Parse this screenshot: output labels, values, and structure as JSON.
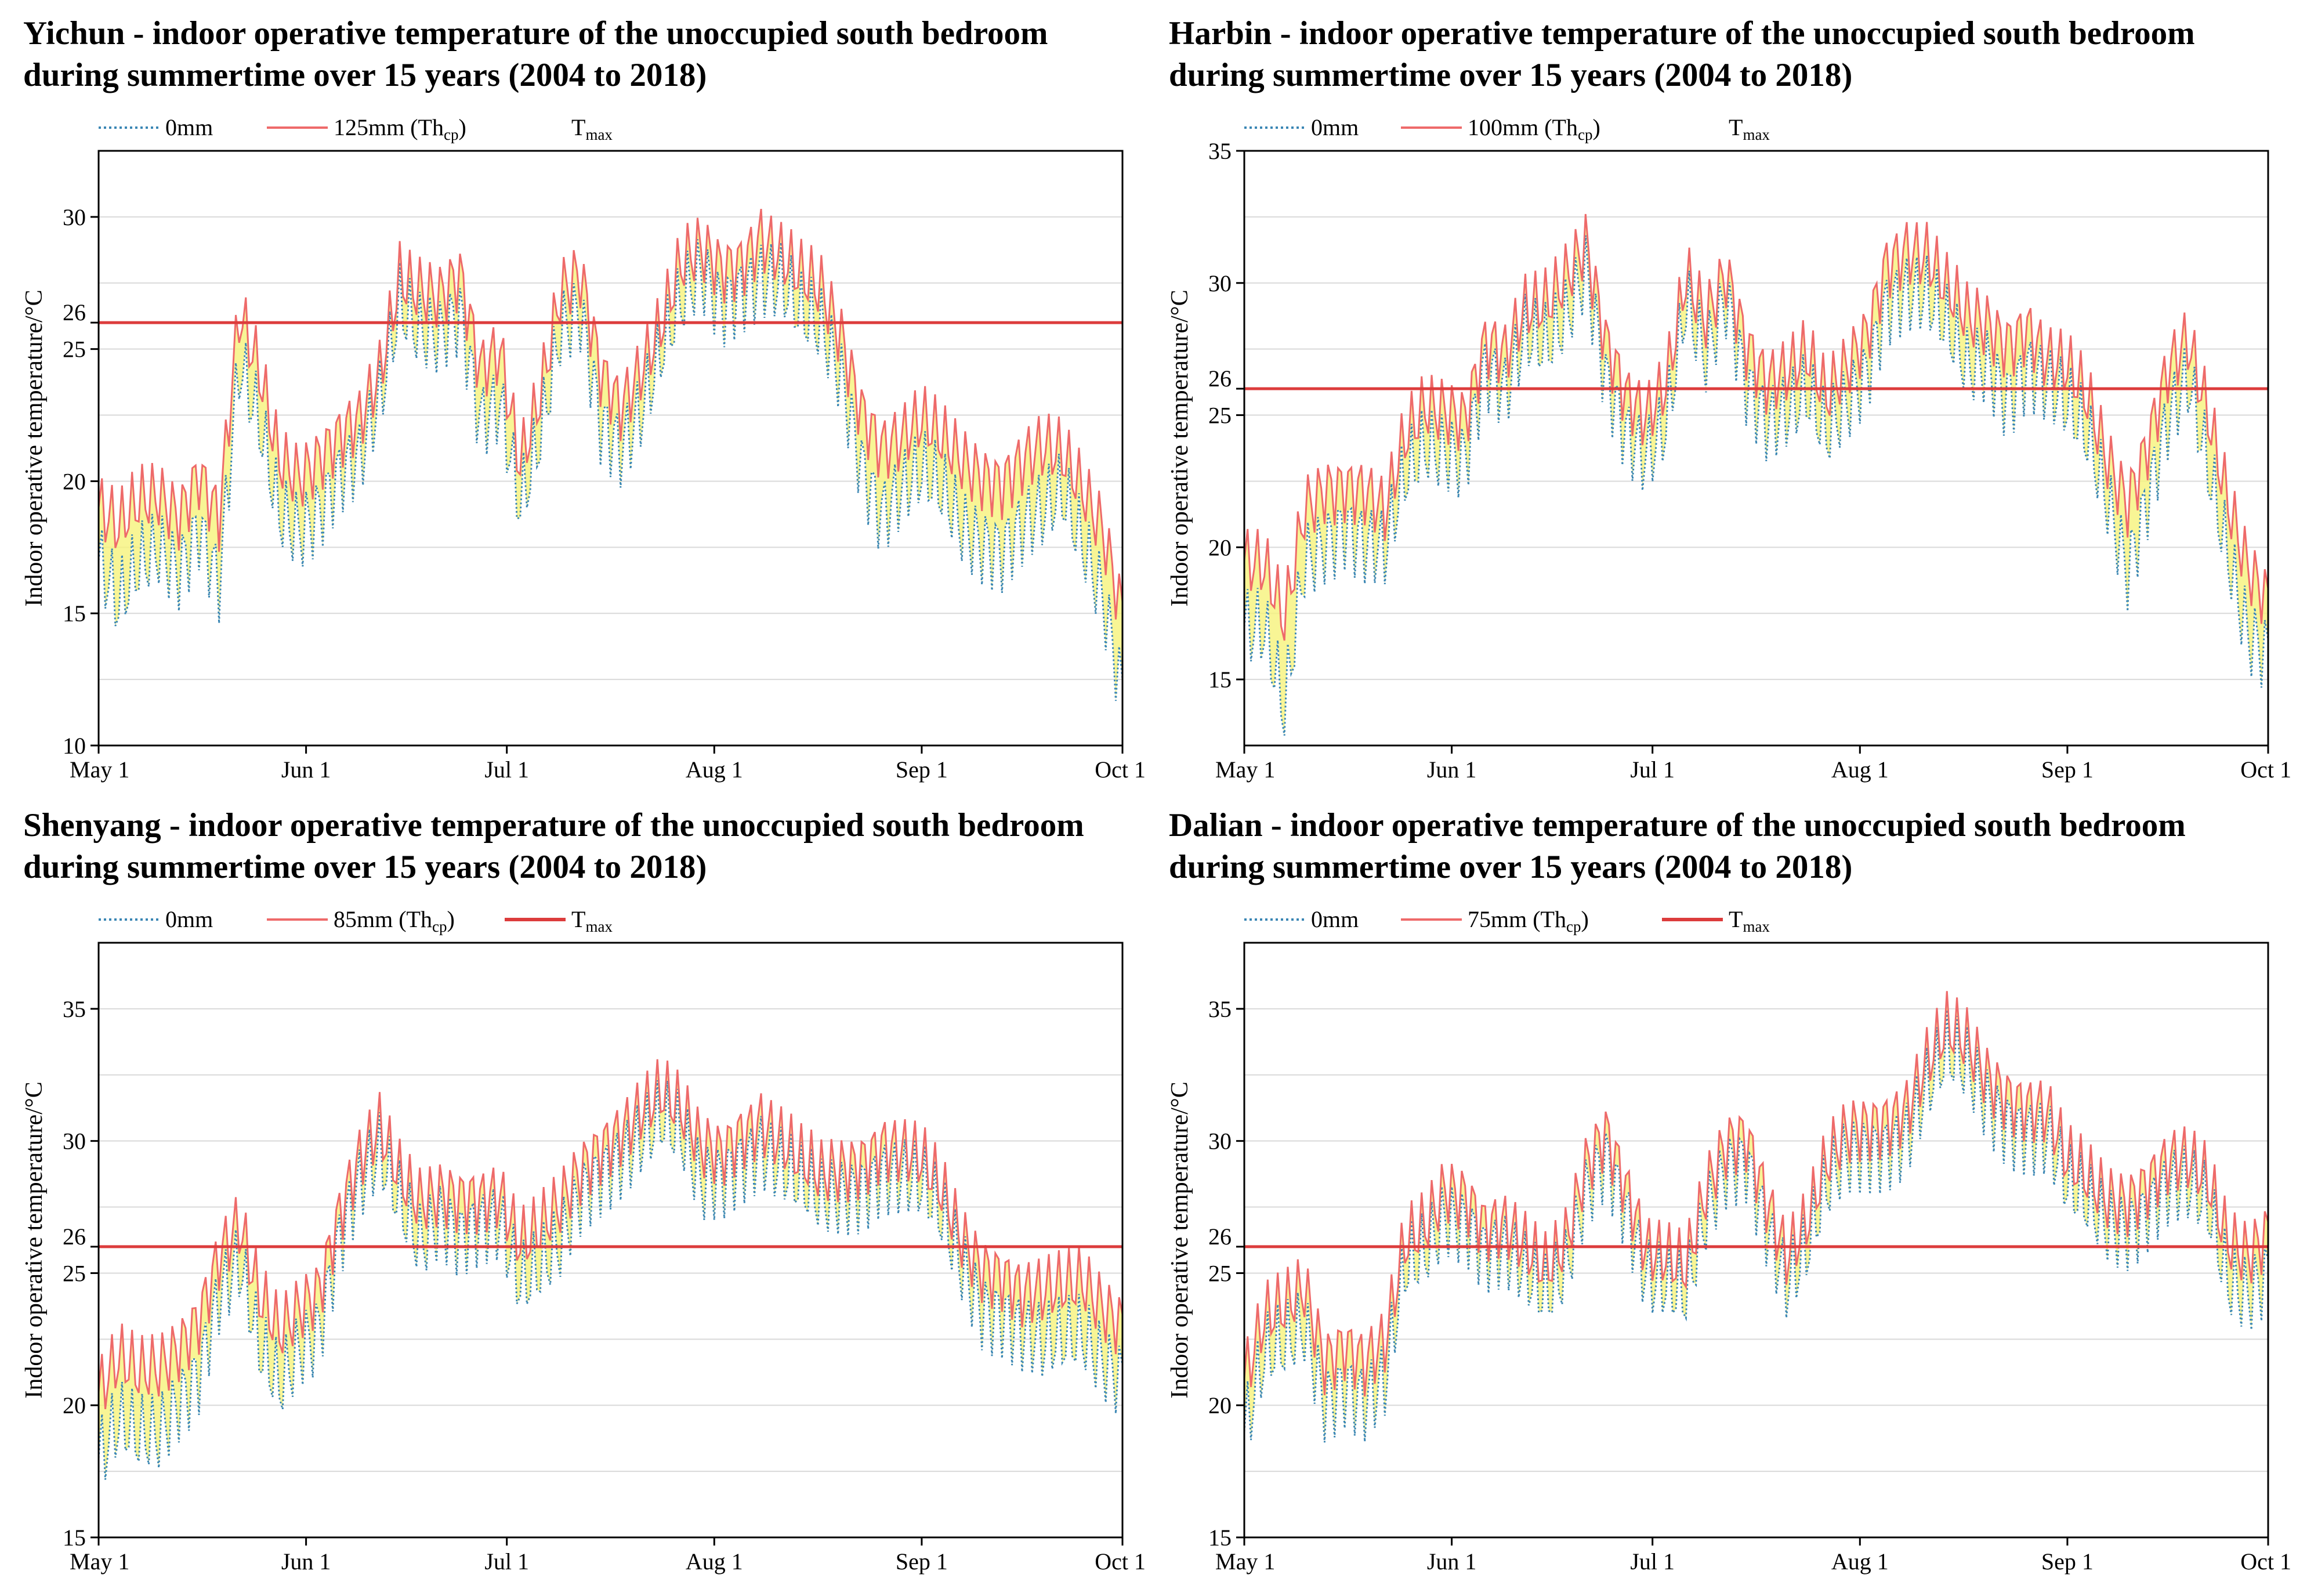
{
  "colors": {
    "baseline": "#3a86b4",
    "insulated": "#ee6a6a",
    "tmax": "#dc3c3c",
    "fill": "#f6f27a",
    "grid": "#d9d9d9",
    "frame": "#000000"
  },
  "panels": [
    {
      "id": "yichun",
      "title_line1": "Yichun - indoor operative temperature of the unoccupied south bedroom",
      "title_line2": "during summertime over 15 years (2004 to 2018)",
      "legend": {
        "baseline": "0mm",
        "insulated_prefix": "125mm (Th",
        "insulated_sub": "cp",
        "insulated_suffix": ")",
        "tmax_prefix": "T",
        "tmax_sub": "max"
      },
      "show_tmax_legend_line": false
    },
    {
      "id": "harbin",
      "title_line1": "Harbin - indoor operative temperature of the unoccupied south bedroom",
      "title_line2": "during summertime over 15 years (2004 to 2018)",
      "legend": {
        "baseline": "0mm",
        "insulated_prefix": "100mm (Th",
        "insulated_sub": "cp",
        "insulated_suffix": ")",
        "tmax_prefix": "T",
        "tmax_sub": "max"
      },
      "show_tmax_legend_line": false
    },
    {
      "id": "shenyang",
      "title_line1": "Shenyang - indoor operative temperature of the unoccupied south bedroom",
      "title_line2": "during summertime over 15 years (2004 to 2018)",
      "legend": {
        "baseline": "0mm",
        "insulated_prefix": "85mm (Th",
        "insulated_sub": "cp",
        "insulated_suffix": ")",
        "tmax_prefix": "T",
        "tmax_sub": "max"
      },
      "show_tmax_legend_line": true
    },
    {
      "id": "dalian",
      "title_line1": "Dalian - indoor operative temperature of the unoccupied south bedroom",
      "title_line2": "during summertime over 15 years (2004 to 2018)",
      "legend": {
        "baseline": "0mm",
        "insulated_prefix": "75mm (Th",
        "insulated_sub": "cp",
        "insulated_suffix": ")",
        "tmax_prefix": "T",
        "tmax_sub": "max"
      },
      "show_tmax_legend_line": true
    }
  ],
  "chart_data": [
    {
      "type": "line",
      "ylabel": "Indoor operative temperature/°C",
      "xlabel": "",
      "x_tick_labels": [
        "May 1",
        "Jun 1",
        "Jul 1",
        "Aug 1",
        "Sep 1",
        "Oct 1"
      ],
      "x_tick_days": [
        0,
        31,
        61,
        92,
        123,
        153
      ],
      "xlim": [
        0,
        153
      ],
      "ylim": [
        10,
        32.5
      ],
      "y_ticks": [
        10,
        15,
        20,
        25,
        26,
        30
      ],
      "y_minor_grid": [
        12.5,
        17.5,
        22.5,
        27.5,
        32.5
      ],
      "tmax": 26,
      "series": [
        {
          "name": "0mm",
          "style": "dotted",
          "x": [
            0,
            3,
            6,
            9,
            12,
            15,
            18,
            21,
            24,
            27,
            30,
            33,
            36,
            39,
            42,
            45,
            48,
            51,
            54,
            57,
            60,
            63,
            66,
            69,
            72,
            75,
            78,
            81,
            84,
            87,
            90,
            93,
            96,
            99,
            102,
            105,
            108,
            111,
            114,
            117,
            120,
            123,
            126,
            129,
            132,
            135,
            138,
            141,
            144,
            147,
            150,
            153
          ],
          "y": [
            17,
            15,
            16.5,
            17.5,
            17,
            18.5,
            16,
            24,
            22,
            19,
            18.5,
            19,
            20,
            20.5,
            23,
            27,
            26,
            25.5,
            26,
            22,
            23,
            19.5,
            22,
            25.5,
            26,
            22,
            21.5,
            23,
            25,
            26.5,
            27.5,
            26.5,
            27.5,
            28,
            27.5,
            26,
            25.5,
            24,
            21,
            19,
            19.5,
            20,
            19.5,
            18.5,
            18,
            17.5,
            18,
            18.5,
            19.5,
            18,
            16,
            12
          ]
        },
        {
          "name": "125mm (Thcp)",
          "style": "solid",
          "x": [
            0,
            3,
            6,
            9,
            12,
            15,
            18,
            21,
            24,
            27,
            30,
            33,
            36,
            39,
            42,
            45,
            48,
            51,
            54,
            57,
            60,
            63,
            66,
            69,
            72,
            75,
            78,
            81,
            84,
            87,
            90,
            93,
            96,
            99,
            102,
            105,
            108,
            111,
            114,
            117,
            120,
            123,
            126,
            129,
            132,
            135,
            138,
            141,
            144,
            147,
            150,
            153
          ],
          "y": [
            19,
            18,
            19,
            19.5,
            19,
            20.5,
            18.5,
            26,
            24,
            21,
            20.5,
            21,
            21.5,
            22,
            24,
            28,
            27.5,
            27,
            27.5,
            24,
            25,
            21,
            23.5,
            27,
            27.5,
            24,
            23,
            24.5,
            26,
            28,
            28.5,
            28,
            28.5,
            29.5,
            28.5,
            27.5,
            27,
            25.5,
            23,
            21.5,
            21.5,
            22,
            21.5,
            21,
            20.5,
            20,
            20.5,
            21,
            21,
            20,
            18.5,
            15
          ]
        }
      ]
    },
    {
      "type": "line",
      "ylabel": "Indoor operative temperature/°C",
      "xlabel": "",
      "x_tick_labels": [
        "May 1",
        "Jun 1",
        "Jul 1",
        "Aug 1",
        "Sep 1",
        "Oct 1"
      ],
      "x_tick_days": [
        0,
        31,
        61,
        92,
        123,
        153
      ],
      "xlim": [
        0,
        153
      ],
      "ylim": [
        12.5,
        35
      ],
      "y_ticks": [
        15,
        20,
        25,
        26,
        30,
        35
      ],
      "y_minor_grid": [
        17.5,
        22.5,
        27.5,
        32.5
      ],
      "tmax": 26,
      "series": [
        {
          "name": "0mm",
          "style": "dotted",
          "x": [
            0,
            3,
            6,
            9,
            12,
            15,
            18,
            21,
            24,
            27,
            30,
            33,
            36,
            39,
            42,
            45,
            48,
            51,
            54,
            57,
            60,
            63,
            66,
            69,
            72,
            75,
            78,
            81,
            84,
            87,
            90,
            93,
            96,
            99,
            102,
            105,
            108,
            111,
            114,
            117,
            120,
            123,
            126,
            129,
            132,
            135,
            138,
            141,
            144,
            147,
            150,
            153
          ],
          "y": [
            17,
            16.5,
            13.5,
            19.5,
            20.5,
            21,
            20,
            19.5,
            22.5,
            24,
            24,
            23.5,
            26.5,
            25.5,
            28,
            28,
            29,
            30.5,
            26,
            24,
            23.5,
            25,
            29.5,
            27,
            29,
            26,
            25,
            25.5,
            26,
            24,
            25,
            26.5,
            29.5,
            30,
            29.5,
            28,
            26.5,
            27,
            26,
            27,
            26,
            25,
            24,
            22,
            19.5,
            22,
            24.5,
            26,
            23,
            20,
            17,
            16
          ]
        },
        {
          "name": "100mm (Thcp)",
          "style": "solid",
          "x": [
            0,
            3,
            6,
            9,
            12,
            15,
            18,
            21,
            24,
            27,
            30,
            33,
            36,
            39,
            42,
            45,
            48,
            51,
            54,
            57,
            60,
            63,
            66,
            69,
            72,
            75,
            78,
            81,
            84,
            87,
            90,
            93,
            96,
            99,
            102,
            105,
            108,
            111,
            114,
            117,
            120,
            123,
            126,
            129,
            132,
            135,
            138,
            141,
            144,
            147,
            150,
            153
          ],
          "y": [
            19.5,
            19,
            17,
            21.5,
            22.5,
            22.5,
            22,
            21,
            24,
            25.5,
            25.5,
            25,
            27.5,
            27,
            29,
            29.5,
            30.5,
            31.5,
            27.5,
            25.5,
            25,
            26.5,
            30.5,
            28.5,
            30,
            27.5,
            26.5,
            27,
            27.5,
            25.5,
            26.5,
            28,
            31,
            31.5,
            31,
            29.5,
            28.5,
            28.5,
            28,
            28.5,
            27,
            26.5,
            25.5,
            23.5,
            22,
            24,
            26.5,
            27.5,
            25,
            22,
            19.5,
            18
          ]
        }
      ]
    },
    {
      "type": "line",
      "ylabel": "Indoor operative temperature/°C",
      "xlabel": "",
      "x_tick_labels": [
        "May 1",
        "Jun 1",
        "Jul 1",
        "Aug 1",
        "Sep 1",
        "Oct 1"
      ],
      "x_tick_days": [
        0,
        31,
        61,
        92,
        123,
        153
      ],
      "xlim": [
        0,
        153
      ],
      "ylim": [
        15,
        37.5
      ],
      "y_ticks": [
        15,
        20,
        25,
        26,
        30,
        35
      ],
      "y_minor_grid": [
        17.5,
        22.5,
        27.5,
        32.5
      ],
      "tmax": 26,
      "series": [
        {
          "name": "0mm",
          "style": "dotted",
          "x": [
            0,
            3,
            6,
            9,
            12,
            15,
            18,
            21,
            24,
            27,
            30,
            33,
            36,
            39,
            42,
            45,
            48,
            51,
            54,
            57,
            60,
            63,
            66,
            69,
            72,
            75,
            78,
            81,
            84,
            87,
            90,
            93,
            96,
            99,
            102,
            105,
            108,
            111,
            114,
            117,
            120,
            123,
            126,
            129,
            132,
            135,
            138,
            141,
            144,
            147,
            150,
            153
          ],
          "y": [
            18,
            19,
            18.5,
            19,
            20.5,
            21.5,
            24,
            25,
            22,
            21,
            22.5,
            23,
            26,
            28,
            29.5,
            28,
            26.5,
            27,
            26,
            26.5,
            27,
            25,
            25.5,
            26,
            27.5,
            28.5,
            29.5,
            30.5,
            31,
            30,
            28,
            28.5,
            29.5,
            30,
            29,
            28,
            27.5,
            28,
            28.5,
            29,
            28.5,
            28,
            27,
            25.5,
            24,
            23.5,
            22.5,
            22,
            22.5,
            23,
            22,
            21
          ]
        },
        {
          "name": "85mm (Thcp)",
          "style": "solid",
          "x": [
            0,
            3,
            6,
            9,
            12,
            15,
            18,
            21,
            24,
            27,
            30,
            33,
            36,
            39,
            42,
            45,
            48,
            51,
            54,
            57,
            60,
            63,
            66,
            69,
            72,
            75,
            78,
            81,
            84,
            87,
            90,
            93,
            96,
            99,
            102,
            105,
            108,
            111,
            114,
            117,
            120,
            123,
            126,
            129,
            132,
            135,
            138,
            141,
            144,
            147,
            150,
            153
          ],
          "y": [
            20.5,
            21.5,
            21,
            21.5,
            22.5,
            23.5,
            25.5,
            26.5,
            24,
            23,
            24,
            24.5,
            27,
            29,
            30.5,
            29,
            28,
            28,
            27.5,
            27.5,
            28,
            26.5,
            27,
            27.5,
            28.5,
            29.5,
            30.5,
            31.5,
            32,
            31,
            29.5,
            29.5,
            30.5,
            31,
            30,
            29,
            28.5,
            29,
            29.5,
            30,
            29.5,
            29,
            28,
            26.5,
            25.5,
            25,
            24,
            24,
            24.5,
            25,
            24,
            23
          ]
        }
      ]
    },
    {
      "type": "line",
      "ylabel": "Indoor operative temperature/°C",
      "xlabel": "",
      "x_tick_labels": [
        "May 1",
        "Jun 1",
        "Jul 1",
        "Aug 1",
        "Sep 1",
        "Oct 1"
      ],
      "x_tick_days": [
        0,
        31,
        61,
        92,
        123,
        153
      ],
      "xlim": [
        0,
        153
      ],
      "ylim": [
        15,
        37.5
      ],
      "y_ticks": [
        15,
        20,
        25,
        26,
        30,
        35
      ],
      "y_minor_grid": [
        17.5,
        22.5,
        27.5,
        32.5
      ],
      "tmax": 26,
      "series": [
        {
          "name": "0mm",
          "style": "dotted",
          "x": [
            0,
            3,
            6,
            9,
            12,
            15,
            18,
            21,
            24,
            27,
            30,
            33,
            36,
            39,
            42,
            45,
            48,
            51,
            54,
            57,
            60,
            63,
            66,
            69,
            72,
            75,
            78,
            81,
            84,
            87,
            90,
            93,
            96,
            99,
            102,
            105,
            108,
            111,
            114,
            117,
            120,
            123,
            126,
            129,
            132,
            135,
            138,
            141,
            144,
            147,
            150,
            153
          ],
          "y": [
            19,
            21.5,
            22,
            23,
            20.5,
            21,
            20,
            20.5,
            25,
            26,
            27.5,
            27,
            25.5,
            25.5,
            25,
            24.5,
            25.5,
            28,
            29,
            27,
            25,
            25,
            24.5,
            27,
            28.5,
            29,
            27,
            25,
            26,
            28,
            29,
            29.5,
            30,
            30.5,
            32,
            33,
            32.5,
            31.5,
            31,
            30.5,
            30,
            28,
            27.5,
            27,
            27,
            27.5,
            28,
            28,
            27.5,
            25,
            24.5,
            25
          ]
        },
        {
          "name": "75mm (Thcp)",
          "style": "solid",
          "x": [
            0,
            3,
            6,
            9,
            12,
            15,
            18,
            21,
            24,
            27,
            30,
            33,
            36,
            39,
            42,
            45,
            48,
            51,
            54,
            57,
            60,
            63,
            66,
            69,
            72,
            75,
            78,
            81,
            84,
            87,
            90,
            93,
            96,
            99,
            102,
            105,
            108,
            111,
            114,
            117,
            120,
            123,
            126,
            129,
            132,
            135,
            138,
            141,
            144,
            147,
            150,
            153
          ],
          "y": [
            21,
            23,
            23.5,
            24.5,
            22,
            22.5,
            21.5,
            22,
            26,
            27,
            28.5,
            28,
            26.5,
            26.5,
            26,
            25.5,
            26.5,
            29,
            30,
            28,
            26,
            26,
            25.5,
            28,
            29.5,
            30,
            28,
            26,
            27,
            29,
            30,
            30.5,
            31,
            31.5,
            33,
            34,
            33.5,
            32.5,
            32,
            31.5,
            31,
            29,
            28.5,
            28,
            28,
            28.5,
            29,
            29,
            28.5,
            26.5,
            26,
            26.5
          ]
        }
      ]
    }
  ]
}
